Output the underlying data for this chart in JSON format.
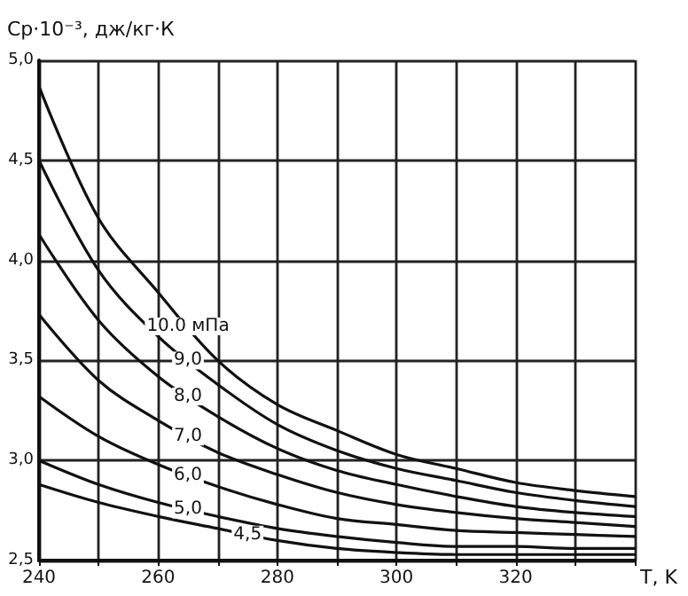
{
  "chart_data": {
    "type": "line",
    "xlabel": "T, K",
    "ylabel": "Cp·10⁻³, дж/кг·К",
    "x": [
      240,
      250,
      260,
      270,
      280,
      290,
      300,
      310,
      320,
      330,
      340
    ],
    "series": [
      {
        "name": "10.0 мПа",
        "color": "#111111",
        "values": [
          4.87,
          4.21,
          3.84,
          3.5,
          3.28,
          3.15,
          3.03,
          2.96,
          2.89,
          2.85,
          2.82
        ]
      },
      {
        "name": "9,0",
        "color": "#111111",
        "values": [
          4.5,
          3.95,
          3.62,
          3.38,
          3.18,
          3.05,
          2.96,
          2.9,
          2.84,
          2.8,
          2.77
        ]
      },
      {
        "name": "8,0",
        "color": "#111111",
        "values": [
          4.13,
          3.7,
          3.42,
          3.22,
          3.06,
          2.95,
          2.88,
          2.82,
          2.77,
          2.74,
          2.72
        ]
      },
      {
        "name": "7,0",
        "color": "#111111",
        "values": [
          3.73,
          3.4,
          3.2,
          3.04,
          2.93,
          2.84,
          2.78,
          2.74,
          2.71,
          2.69,
          2.67
        ]
      },
      {
        "name": "6,0",
        "color": "#111111",
        "values": [
          3.32,
          3.12,
          2.98,
          2.87,
          2.78,
          2.71,
          2.68,
          2.65,
          2.64,
          2.63,
          2.62
        ]
      },
      {
        "name": "5,0",
        "color": "#111111",
        "values": [
          3.0,
          2.88,
          2.79,
          2.72,
          2.66,
          2.62,
          2.59,
          2.57,
          2.57,
          2.56,
          2.56
        ]
      },
      {
        "name": "4,5",
        "color": "#111111",
        "values": [
          2.88,
          2.79,
          2.72,
          2.66,
          2.6,
          2.56,
          2.54,
          2.53,
          2.53,
          2.53,
          2.53
        ]
      }
    ],
    "xlim": [
      240,
      340
    ],
    "xticks": [
      240,
      {
        "value": 250,
        "label": null
      },
      260,
      {
        "value": 270,
        "label": null
      },
      280,
      {
        "value": 290,
        "label": null
      },
      300,
      {
        "value": 310,
        "label": null
      },
      320,
      {
        "value": 330,
        "label": null
      },
      {
        "value": 340,
        "label": null
      }
    ],
    "ylim": [
      2.5,
      5.0
    ],
    "yticks": [
      {
        "value": 2.5,
        "label": "2,5"
      },
      {
        "value": 3.0,
        "label": "3,0"
      },
      {
        "value": 3.5,
        "label": "3,5"
      },
      {
        "value": 4.0,
        "label": "4,0"
      },
      {
        "value": 4.5,
        "label": "4,5"
      },
      {
        "value": 5.0,
        "label": "5,0"
      }
    ],
    "grid": true,
    "legend": false,
    "marker": "none",
    "line_style": "solid"
  }
}
